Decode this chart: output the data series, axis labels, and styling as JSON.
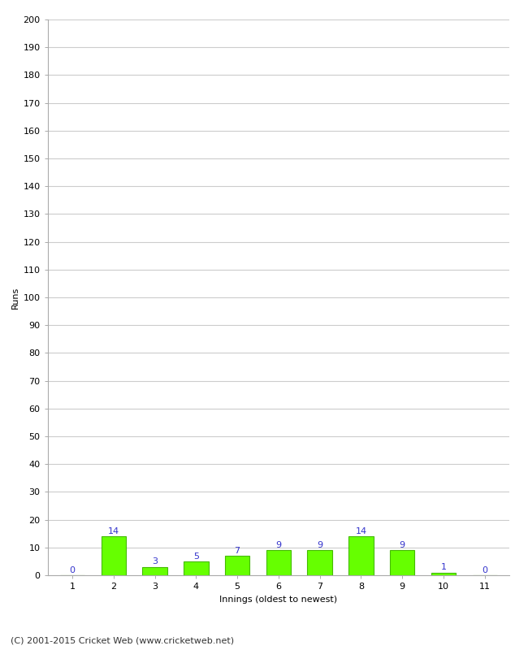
{
  "innings": [
    1,
    2,
    3,
    4,
    5,
    6,
    7,
    8,
    9,
    10,
    11
  ],
  "runs": [
    0,
    14,
    3,
    5,
    7,
    9,
    9,
    14,
    9,
    1,
    0
  ],
  "bar_color": "#66ff00",
  "bar_edge_color": "#44bb00",
  "label_color": "#3333cc",
  "ylabel": "Runs",
  "xlabel": "Innings (oldest to newest)",
  "ylim": [
    0,
    200
  ],
  "yticks": [
    0,
    10,
    20,
    30,
    40,
    50,
    60,
    70,
    80,
    90,
    100,
    110,
    120,
    130,
    140,
    150,
    160,
    170,
    180,
    190,
    200
  ],
  "background_color": "#ffffff",
  "grid_color": "#cccccc",
  "footer": "(C) 2001-2015 Cricket Web (www.cricketweb.net)",
  "tick_labelsize": 8,
  "axis_labelsize": 8,
  "bar_label_fontsize": 8,
  "footer_fontsize": 8,
  "bar_width": 0.6
}
